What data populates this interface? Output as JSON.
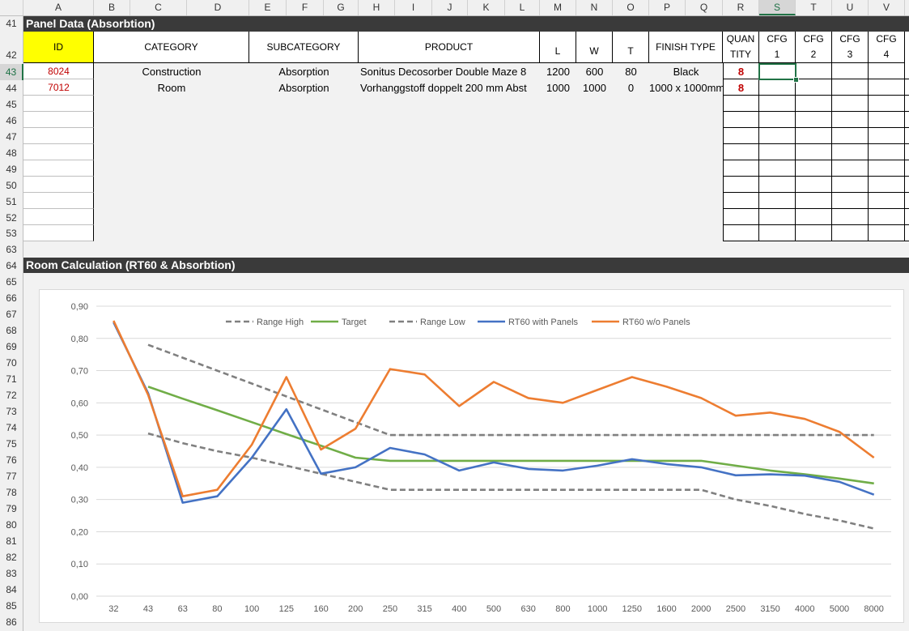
{
  "columns": [
    "A",
    "B",
    "C",
    "D",
    "E",
    "F",
    "G",
    "H",
    "I",
    "J",
    "K",
    "L",
    "M",
    "N",
    "O",
    "P",
    "Q",
    "R",
    "S",
    "T",
    "U",
    "V"
  ],
  "rows": [
    "41",
    "42",
    "43",
    "44",
    "45",
    "46",
    "47",
    "48",
    "49",
    "50",
    "51",
    "52",
    "53",
    "63",
    "64",
    "65",
    "66",
    "67",
    "68",
    "69",
    "70",
    "71",
    "72",
    "73",
    "74",
    "75",
    "76",
    "77",
    "78",
    "79",
    "80",
    "81",
    "82",
    "83",
    "84",
    "85",
    "86"
  ],
  "panel_title": "Panel Data (Absorbtion)",
  "room_title": "Room Calculation (RT60 & Absorbtion)",
  "table": {
    "headers": {
      "id": "ID",
      "category": "CATEGORY",
      "subcategory": "SUBCATEGORY",
      "product": "PRODUCT",
      "l": "L",
      "w": "W",
      "t": "T",
      "finish": "FINISH TYPE",
      "quantity_1": "QUAN",
      "quantity_2": "TITY",
      "cfg1_a": "CFG",
      "cfg1_b": "1",
      "cfg2_a": "CFG",
      "cfg2_b": "2",
      "cfg3_a": "CFG",
      "cfg3_b": "3",
      "cfg4_a": "CFG",
      "cfg4_b": "4"
    },
    "rows": [
      {
        "id": "8024",
        "category": "Construction",
        "subcategory": "Absorption",
        "product": "Sonitus Decosorber Double Maze 8",
        "l": "1200",
        "w": "600",
        "t": "80",
        "finish": "Black",
        "quantity": "8"
      },
      {
        "id": "7012",
        "category": "Room",
        "subcategory": "Absorption",
        "product": "Vorhanggstoff doppelt 200 mm Abst",
        "l": "1000",
        "w": "1000",
        "t": "0",
        "finish": "1000 x 1000mm",
        "quantity": "8"
      }
    ]
  },
  "colors": {
    "range": "#808080",
    "target": "#70ad47",
    "with_panels": "#4472c4",
    "without_panels": "#ed7d31",
    "id_header_bg": "#ffff00",
    "id_text": "#c00000"
  },
  "chart_data": {
    "type": "line",
    "categories": [
      "32",
      "43",
      "63",
      "80",
      "100",
      "125",
      "160",
      "200",
      "250",
      "315",
      "400",
      "500",
      "630",
      "800",
      "1000",
      "1250",
      "1600",
      "2000",
      "2500",
      "3150",
      "4000",
      "5000",
      "8000"
    ],
    "ylim": [
      0,
      0.9
    ],
    "y_ticks": [
      "0,00",
      "0,10",
      "0,20",
      "0,30",
      "0,40",
      "0,50",
      "0,60",
      "0,70",
      "0,80",
      "0,90"
    ],
    "legend_position": "top",
    "grid": true,
    "series": [
      {
        "name": "Range High",
        "style": "dashed",
        "color": "#808080",
        "values": [
          null,
          0.78,
          0.74,
          0.7,
          0.66,
          0.62,
          0.58,
          0.54,
          0.5,
          0.5,
          0.5,
          0.5,
          0.5,
          0.5,
          0.5,
          0.5,
          0.5,
          0.5,
          0.5,
          0.5,
          0.5,
          0.5,
          0.5
        ]
      },
      {
        "name": "Target",
        "style": "solid",
        "color": "#70ad47",
        "values": [
          null,
          0.65,
          0.613,
          0.577,
          0.54,
          0.503,
          0.467,
          0.43,
          0.42,
          0.42,
          0.42,
          0.42,
          0.42,
          0.42,
          0.42,
          0.42,
          0.42,
          0.42,
          0.405,
          0.39,
          0.378,
          0.365,
          0.35
        ]
      },
      {
        "name": "Range Low",
        "style": "dashed",
        "color": "#808080",
        "values": [
          null,
          0.505,
          0.475,
          0.45,
          0.43,
          0.405,
          0.38,
          0.355,
          0.33,
          0.33,
          0.33,
          0.33,
          0.33,
          0.33,
          0.33,
          0.33,
          0.33,
          0.33,
          0.3,
          0.28,
          0.255,
          0.235,
          0.21
        ]
      },
      {
        "name": "RT60 with Panels",
        "style": "solid",
        "color": "#4472c4",
        "values": [
          0.85,
          0.63,
          0.29,
          0.31,
          0.43,
          0.58,
          0.38,
          0.4,
          0.46,
          0.44,
          0.39,
          0.415,
          0.395,
          0.39,
          0.405,
          0.425,
          0.41,
          0.4,
          0.375,
          0.378,
          0.374,
          0.355,
          0.315
        ]
      },
      {
        "name": "RT60 w/o Panels",
        "style": "solid",
        "color": "#ed7d31",
        "values": [
          0.855,
          0.625,
          0.31,
          0.33,
          0.47,
          0.68,
          0.455,
          0.52,
          0.705,
          0.688,
          0.59,
          0.665,
          0.615,
          0.6,
          0.64,
          0.68,
          0.65,
          0.615,
          0.56,
          0.57,
          0.55,
          0.51,
          0.43
        ]
      }
    ]
  }
}
